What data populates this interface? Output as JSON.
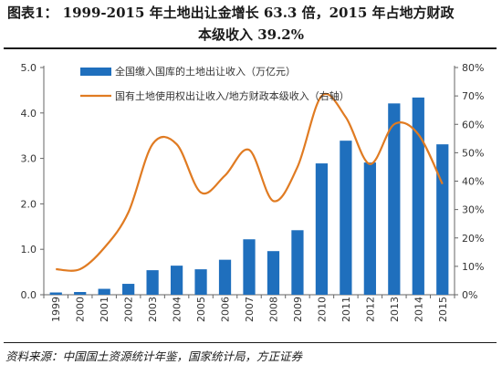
{
  "title": {
    "line1": "图表1：  1999-2015 年土地出让金增长 63.3 倍，2015 年占地方财政",
    "line2": "本级收入 39.2%"
  },
  "source": "资料来源：中国国土资源统计年鉴，国家统计局，方正证券",
  "colors": {
    "bar": "#1f6fbd",
    "line": "#e07b22",
    "axis": "#666666",
    "text": "#333333"
  },
  "chart_data": {
    "type": "bar",
    "categories": [
      "1999",
      "2000",
      "2001",
      "2002",
      "2003",
      "2004",
      "2005",
      "2006",
      "2007",
      "2008",
      "2009",
      "2010",
      "2011",
      "2012",
      "2013",
      "2014",
      "2015"
    ],
    "series": [
      {
        "name": "全国缴入国库的土地出让收入（万亿元）",
        "type": "bar",
        "axis": "left",
        "values": [
          0.05,
          0.06,
          0.13,
          0.24,
          0.54,
          0.64,
          0.56,
          0.77,
          1.22,
          0.96,
          1.42,
          2.89,
          3.39,
          2.91,
          4.21,
          4.34,
          3.31
        ]
      },
      {
        "name": "国有土地使用权出让收入/地方财政本级收入（右轴）",
        "type": "line",
        "axis": "right",
        "values": [
          0.09,
          0.09,
          0.165,
          0.29,
          0.53,
          0.53,
          0.36,
          0.42,
          0.51,
          0.33,
          0.45,
          0.7,
          0.625,
          0.46,
          0.6,
          0.565,
          0.39
        ]
      }
    ],
    "y_left": {
      "ylim": [
        0,
        5
      ],
      "ticks": [
        "0.0",
        "1.0",
        "2.0",
        "3.0",
        "4.0",
        "5.0"
      ]
    },
    "y_right": {
      "ylim": [
        0,
        0.8
      ],
      "ticks": [
        "0%",
        "10%",
        "20%",
        "30%",
        "40%",
        "50%",
        "60%",
        "70%",
        "80%"
      ]
    },
    "legend_placement": "top-left",
    "grid": false
  }
}
